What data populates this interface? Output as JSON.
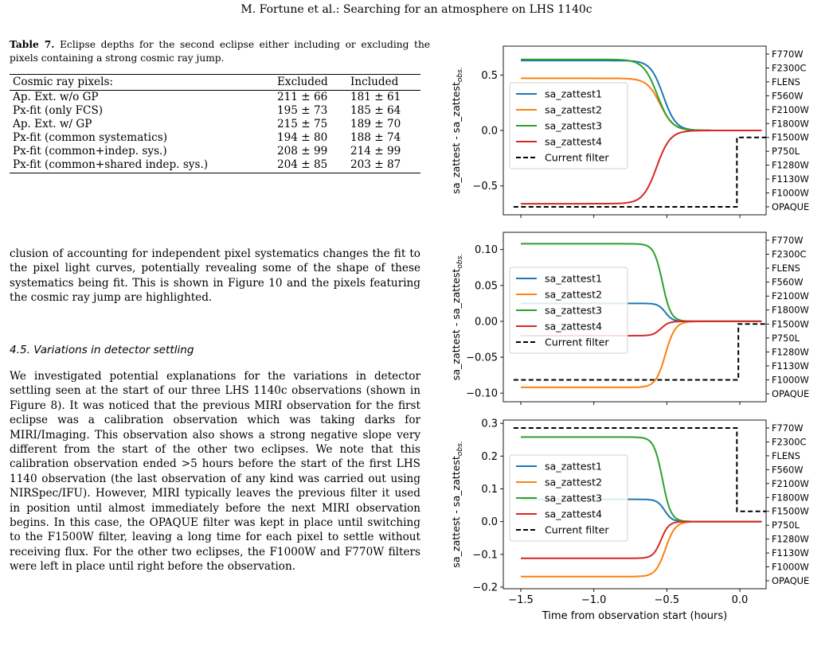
{
  "header": "M. Fortune et al.: Searching for an atmosphere on LHS 1140c",
  "table": {
    "label": "Table 7.",
    "caption": "Eclipse depths for the second eclipse either including or excluding the pixels containing a strong cosmic ray jump.",
    "columns": [
      "Cosmic ray pixels:",
      "Excluded",
      "Included"
    ],
    "rows": [
      [
        "Ap. Ext. w/o GP",
        "211 ± 66",
        "181 ± 61"
      ],
      [
        "Px-fit (only FCS)",
        "195 ± 73",
        "185 ± 64"
      ],
      [
        "Ap. Ext. w/ GP",
        "215 ± 75",
        "189 ± 70"
      ],
      [
        "Px-fit (common systematics)",
        "194 ± 80",
        "188 ± 74"
      ],
      [
        "Px-fit (common+indep. sys.)",
        "208 ± 99",
        "214 ± 99"
      ],
      [
        "Px-fit (common+shared indep. sys.)",
        "204 ± 85",
        "203 ± 87"
      ]
    ]
  },
  "paragraph1": "clusion of accounting for independent pixel systematics changes the fit to the pixel light curves, potentially revealing some of the shape of these systematics being fit. This is shown in Figure 10 and the pixels featuring the cosmic ray jump are highlighted.",
  "section_title": "4.5. Variations in detector settling",
  "paragraph2": "We investigated potential explanations for the variations in detector settling seen at the start of our three LHS 1140c observations (shown in Figure 8). It was noticed that the previous MIRI observation for the first eclipse was a calibration observation which was taking darks for MIRI/Imaging. This observation also shows a strong negative slope very different from the start of the other two eclipses. We note that this calibration observation ended >5 hours before the start of the first LHS 1140 observation (the last observation of any kind was carried out using NIRSpec/IFU). However, MIRI typically leaves the previous filter it used in position until almost immediately before the next MIRI observation begins. In this case, the OPAQUE filter was kept in place until switching to the F1500W filter, leaving a long time for each pixel to settle without receiving flux. For the other two eclipses, the F1000W and F770W filters were left in place until right before the observation.",
  "chart_data": [
    {
      "type": "line",
      "xlabel": "",
      "ylabel": "sa_zattest - sa_zattest_obs.",
      "xlim": [
        -1.62,
        0.18
      ],
      "ylim": [
        -0.76,
        0.76
      ],
      "yticks": [
        -0.5,
        0.0,
        0.5
      ],
      "xticks": [
        -1.5,
        -1.0,
        -0.5,
        0.0
      ],
      "filters": [
        "F770W",
        "F2300C",
        "FLENS",
        "F560W",
        "F2100W",
        "F1800W",
        "F1500W",
        "P750L",
        "F1280W",
        "F1130W",
        "F1000W",
        "OPAQUE"
      ],
      "series": [
        {
          "name": "sa_zattest1",
          "color": "#1f77b4",
          "plateau": 0.63,
          "start": -0.72,
          "end": -0.33
        },
        {
          "name": "sa_zattest2",
          "color": "#ff7f0e",
          "plateau": 0.47,
          "start": -0.75,
          "end": -0.34
        },
        {
          "name": "sa_zattest3",
          "color": "#2ca02c",
          "plateau": 0.64,
          "start": -0.78,
          "end": -0.35
        },
        {
          "name": "sa_zattest4",
          "color": "#d62728",
          "plateau": -0.66,
          "start": -0.78,
          "end": -0.36
        }
      ],
      "current_filter": {
        "name": "Current filter",
        "before": "OPAQUE",
        "after": "F1500W",
        "switch_x": -0.02
      }
    },
    {
      "type": "line",
      "xlabel": "",
      "ylabel": "sa_zattest - sa_zattest_obs.",
      "xlim": [
        -1.62,
        0.18
      ],
      "ylim": [
        -0.112,
        0.124
      ],
      "yticks": [
        -0.1,
        -0.05,
        0.0,
        0.05,
        0.1
      ],
      "xticks": [
        -1.5,
        -1.0,
        -0.5,
        0.0
      ],
      "filters": [
        "F770W",
        "F2300C",
        "FLENS",
        "F560W",
        "F2100W",
        "F1800W",
        "F1500W",
        "P750L",
        "F1280W",
        "F1130W",
        "F1000W",
        "OPAQUE"
      ],
      "series": [
        {
          "name": "sa_zattest1",
          "color": "#1f77b4",
          "plateau": 0.025,
          "start": -0.62,
          "end": -0.4
        },
        {
          "name": "sa_zattest2",
          "color": "#ff7f0e",
          "plateau": -0.092,
          "start": -0.66,
          "end": -0.36
        },
        {
          "name": "sa_zattest3",
          "color": "#2ca02c",
          "plateau": 0.108,
          "start": -0.66,
          "end": -0.4
        },
        {
          "name": "sa_zattest4",
          "color": "#d62728",
          "plateau": -0.02,
          "start": -0.66,
          "end": -0.42
        }
      ],
      "current_filter": {
        "name": "Current filter",
        "before": "F1000W",
        "after": "F1500W",
        "switch_x": -0.01
      }
    },
    {
      "type": "line",
      "xlabel": "Time from observation start (hours)",
      "ylabel": "sa_zattest - sa_zattest_obs.",
      "xlim": [
        -1.62,
        0.18
      ],
      "ylim": [
        -0.205,
        0.31
      ],
      "yticks": [
        -0.2,
        -0.1,
        0.0,
        0.1,
        0.2,
        0.3
      ],
      "xticks": [
        -1.5,
        -1.0,
        -0.5,
        0.0
      ],
      "filters": [
        "F770W",
        "F2300C",
        "FLENS",
        "F560W",
        "F2100W",
        "F1800W",
        "F1500W",
        "P750L",
        "F1280W",
        "F1130W",
        "F1000W",
        "OPAQUE"
      ],
      "series": [
        {
          "name": "sa_zattest1",
          "color": "#1f77b4",
          "plateau": 0.068,
          "start": -0.63,
          "end": -0.4
        },
        {
          "name": "sa_zattest2",
          "color": "#ff7f0e",
          "plateau": -0.168,
          "start": -0.66,
          "end": -0.36
        },
        {
          "name": "sa_zattest3",
          "color": "#2ca02c",
          "plateau": 0.258,
          "start": -0.66,
          "end": -0.4
        },
        {
          "name": "sa_zattest4",
          "color": "#d62728",
          "plateau": -0.112,
          "start": -0.66,
          "end": -0.42
        }
      ],
      "current_filter": {
        "name": "Current filter",
        "before": "F770W",
        "after": "F1500W",
        "switch_x": -0.02
      }
    }
  ]
}
